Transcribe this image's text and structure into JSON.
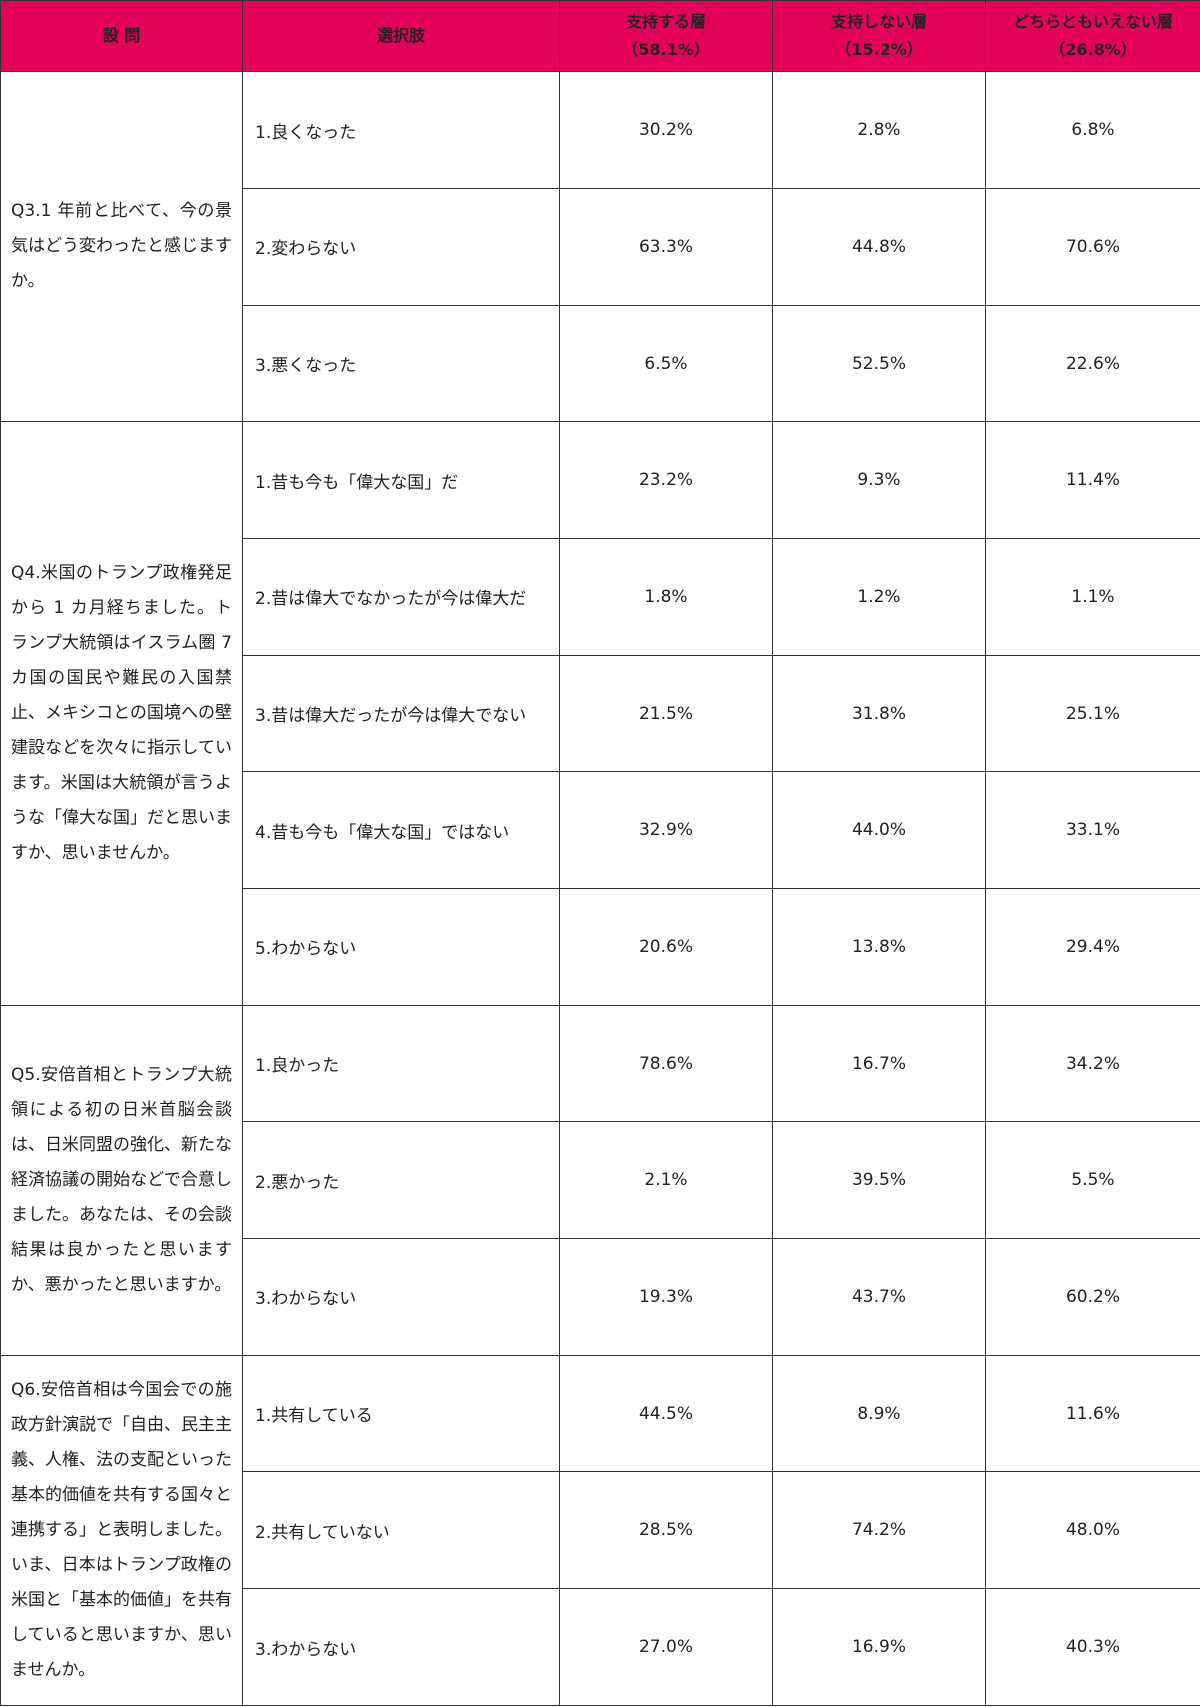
{
  "table": {
    "header": [
      {
        "label": "設 問"
      },
      {
        "label": "選択肢"
      },
      {
        "label": "支持する層",
        "sub": "（58.1%）"
      },
      {
        "label": "支持しない層",
        "sub": "（15.2%）"
      },
      {
        "label": "どちらともいえない層",
        "sub": "（26.8%）"
      }
    ],
    "groups": [
      {
        "question": "Q3.1 年前と比べて、今の景気はどう変わったと感じますか。",
        "options": [
          {
            "label": "1.良くなった",
            "values": [
              "30.2%",
              "2.8%",
              "6.8%"
            ]
          },
          {
            "label": "2.変わらない",
            "values": [
              "63.3%",
              "44.8%",
              "70.6%"
            ]
          },
          {
            "label": "3.悪くなった",
            "values": [
              "6.5%",
              "52.5%",
              "22.6%"
            ]
          }
        ]
      },
      {
        "question": "Q4.米国のトランプ政権発足から 1 カ月経ちました。トランプ大統領はイスラム圏 7 カ国の国民や難民の入国禁止、メキシコとの国境への壁建設などを次々に指示しています。米国は大統領が言うような「偉大な国」だと思いますか、思いませんか。",
        "options": [
          {
            "label": "1.昔も今も「偉大な国」だ",
            "values": [
              "23.2%",
              "9.3%",
              "11.4%"
            ]
          },
          {
            "label": "2.昔は偉大でなかったが今は偉大だ",
            "values": [
              "1.8%",
              "1.2%",
              "1.1%"
            ]
          },
          {
            "label": "3.昔は偉大だったが今は偉大でない",
            "values": [
              "21.5%",
              "31.8%",
              "25.1%"
            ]
          },
          {
            "label": "4.昔も今も「偉大な国」ではない",
            "values": [
              "32.9%",
              "44.0%",
              "33.1%"
            ]
          },
          {
            "label": "5.わからない",
            "values": [
              "20.6%",
              "13.8%",
              "29.4%"
            ]
          }
        ]
      },
      {
        "question": "Q5.安倍首相とトランプ大統領による初の日米首脳会談は、日米同盟の強化、新たな経済協議の開始などで合意しました。あなたは、その会談結果は良かったと思いますか、悪かったと思いますか。",
        "options": [
          {
            "label": "1.良かった",
            "values": [
              "78.6%",
              "16.7%",
              "34.2%"
            ]
          },
          {
            "label": "2.悪かった",
            "values": [
              "2.1%",
              "39.5%",
              "5.5%"
            ]
          },
          {
            "label": "3.わからない",
            "values": [
              "19.3%",
              "43.7%",
              "60.2%"
            ]
          }
        ]
      },
      {
        "question": "Q6.安倍首相は今国会での施政方針演説で「自由、民主主義、人権、法の支配といった基本的価値を共有する国々と連携する」と表明しました。いま、日本はトランプ政権の米国と「基本的価値」を共有していると思いますか、思いませんか。",
        "options": [
          {
            "label": "1.共有している",
            "values": [
              "44.5%",
              "8.9%",
              "11.6%"
            ]
          },
          {
            "label": "2.共有していない",
            "values": [
              "28.5%",
              "74.2%",
              "48.0%"
            ]
          },
          {
            "label": "3.わからない",
            "values": [
              "27.0%",
              "16.9%",
              "40.3%"
            ]
          }
        ]
      }
    ]
  }
}
